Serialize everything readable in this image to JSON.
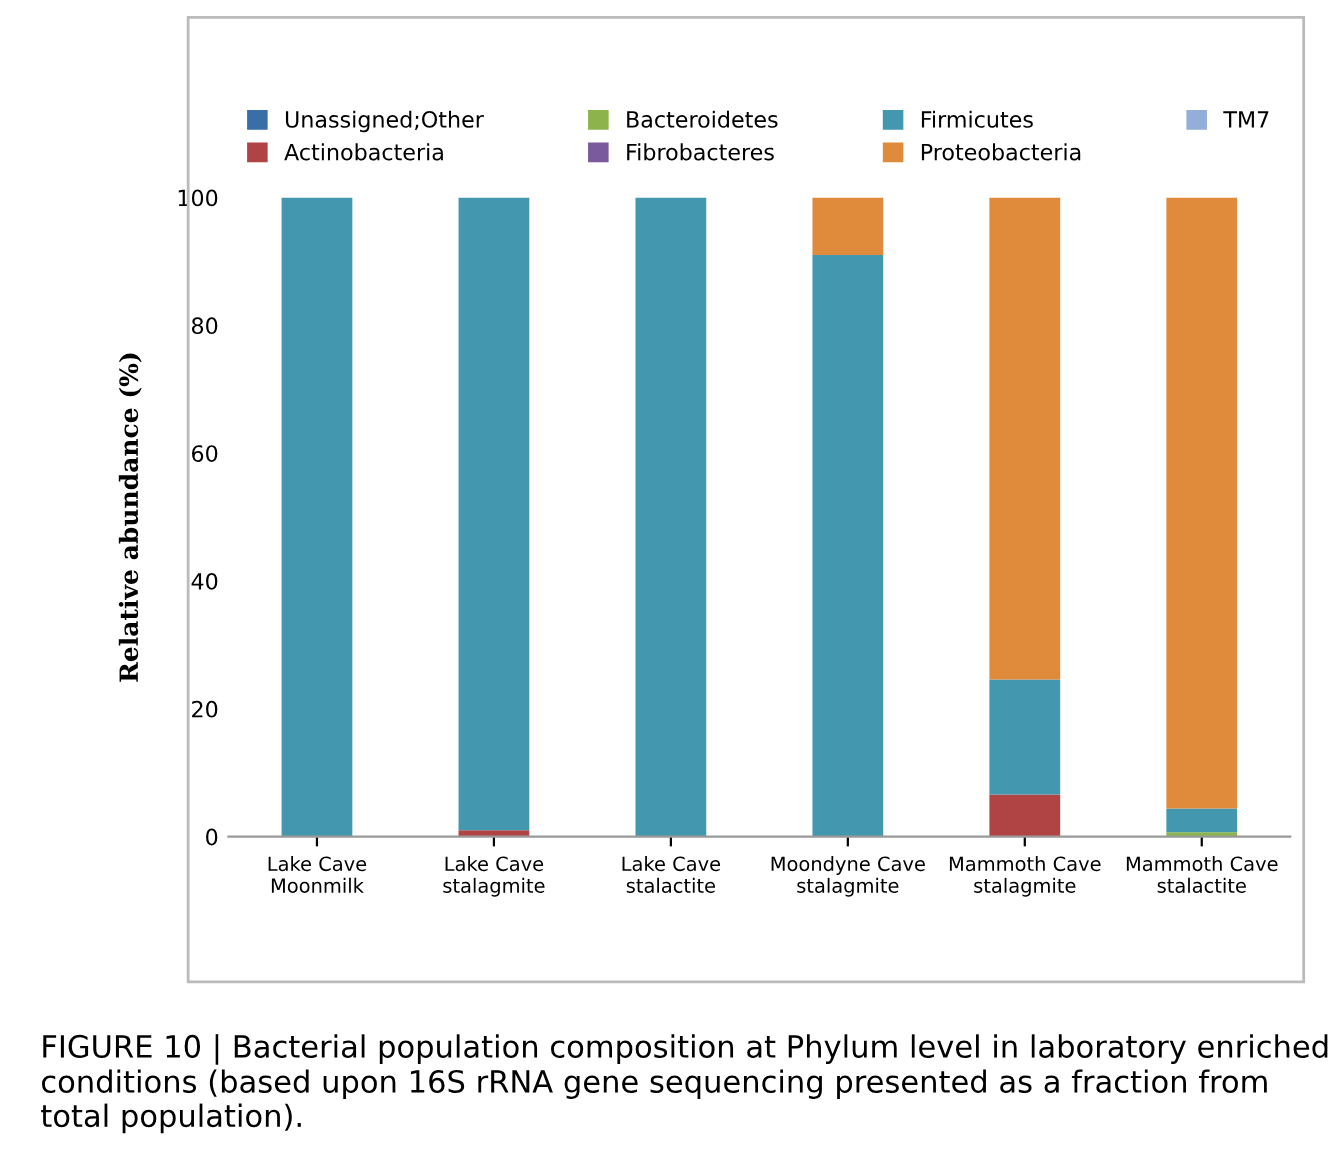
{
  "chart_data": {
    "type": "bar",
    "stacked": true,
    "ylabel": "Relative abundance (%)",
    "categories": [
      "Lake Cave\nMoonmilk",
      "Lake Cave\nstalagmite",
      "Lake Cave\nstalactite",
      "Moondyne Cave\nstalagmite",
      "Mammoth Cave\nstalagmite",
      "Mammoth Cave\nstalactite"
    ],
    "series": [
      {
        "name": "Unassigned;Other",
        "color": "#3a6ea8",
        "values": [
          0,
          0,
          0,
          0,
          0,
          0
        ]
      },
      {
        "name": "Actinobacteria",
        "color": "#b04444",
        "values": [
          0,
          1,
          0,
          0,
          6.6,
          0
        ]
      },
      {
        "name": "Bacteroidetes",
        "color": "#8db44c",
        "values": [
          0,
          0,
          0,
          0,
          0,
          0.7
        ]
      },
      {
        "name": "Fibrobacteres",
        "color": "#7a5a9c",
        "values": [
          0,
          0,
          0,
          0,
          0,
          0
        ]
      },
      {
        "name": "Firmicutes",
        "color": "#4398b0",
        "values": [
          100,
          99,
          100,
          91,
          18,
          3.7
        ]
      },
      {
        "name": "Proteobacteria",
        "color": "#e08a3c",
        "values": [
          0,
          0,
          0,
          9,
          75.4,
          95.6
        ]
      },
      {
        "name": "TM7",
        "color": "#93aed8",
        "values": [
          0,
          0,
          0,
          0,
          0,
          0
        ]
      }
    ],
    "ylim": [
      0,
      100
    ],
    "yticks": [
      0,
      20,
      40,
      60,
      80,
      100
    ],
    "legend": "top",
    "grid": false,
    "annotations": [
      "FIGURE 10 | Bacterial population composition at Phylum level in laboratory enriched conditions (based upon 16S rRNA gene sequencing presented as a fraction from total population)."
    ]
  }
}
